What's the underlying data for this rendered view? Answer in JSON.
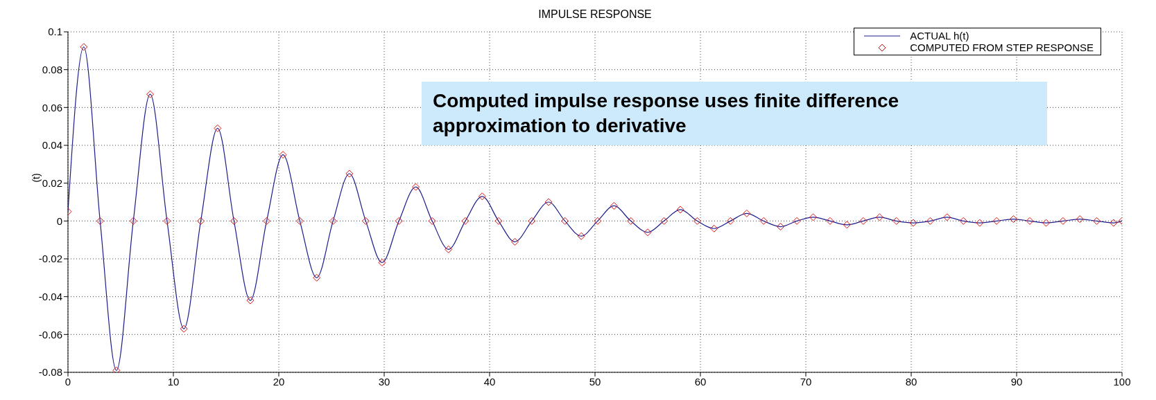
{
  "chart_data": {
    "type": "line",
    "title": "IMPULSE RESPONSE",
    "ylabel": "(t)",
    "annotations": [
      "Computed impulse response uses finite difference approximation to derivative"
    ],
    "x": [
      0,
      1.5,
      3.05,
      4.6,
      6.2,
      7.8,
      9.4,
      11.0,
      12.6,
      14.2,
      15.75,
      17.3,
      18.85,
      20.4,
      22.0,
      23.6,
      25.15,
      26.7,
      28.25,
      29.8,
      31.4,
      33.0,
      34.55,
      36.1,
      37.7,
      39.3,
      40.85,
      42.4,
      44.0,
      45.6,
      47.15,
      48.7,
      50.25,
      51.8,
      53.4,
      55.0,
      56.55,
      58.1,
      59.7,
      61.3,
      62.85,
      64.4,
      66.0,
      67.6,
      69.15,
      70.7,
      72.3,
      73.9,
      75.45,
      77.0,
      78.6,
      80.2,
      81.8,
      83.4,
      84.95,
      86.5,
      88.1,
      89.7,
      91.25,
      92.8,
      94.4,
      96.0,
      97.6,
      99.2,
      100
    ],
    "series": [
      {
        "name": "ACTUAL h(t)",
        "color": "#1c1c8c",
        "values": [
          0.005,
          0.092,
          0,
          -0.079,
          0,
          0.067,
          0,
          -0.057,
          0,
          0.049,
          0,
          -0.042,
          0,
          0.035,
          0,
          -0.03,
          0,
          0.025,
          0,
          -0.022,
          0,
          0.018,
          0,
          -0.015,
          0,
          0.013,
          0,
          -0.011,
          0,
          0.01,
          0,
          -0.008,
          0,
          0.008,
          0,
          -0.006,
          0,
          0.006,
          0,
          -0.004,
          0,
          0.004,
          0,
          -0.003,
          0,
          0.002,
          0,
          -0.002,
          0,
          0.002,
          0,
          -0.001,
          0,
          0.002,
          0,
          -0.001,
          0,
          0.001,
          0,
          -0.001,
          0,
          0.001,
          0,
          -0.001,
          0
        ]
      },
      {
        "name": "COMPUTED FROM STEP RESPONSE",
        "type": "scatter",
        "marker": "diamond",
        "color": "#e01010",
        "values": [
          0.005,
          0.092,
          0,
          -0.079,
          0,
          0.067,
          0,
          -0.057,
          0,
          0.049,
          0,
          -0.042,
          0,
          0.035,
          0,
          -0.03,
          0,
          0.025,
          0,
          -0.022,
          0,
          0.018,
          0,
          -0.015,
          0,
          0.013,
          0,
          -0.011,
          0,
          0.01,
          0,
          -0.008,
          0,
          0.008,
          0,
          -0.006,
          0,
          0.006,
          0,
          -0.004,
          0,
          0.004,
          0,
          -0.003,
          0,
          0.002,
          0,
          -0.002,
          0,
          0.002,
          0,
          -0.001,
          0,
          0.002,
          0,
          -0.001,
          0,
          0.001,
          0,
          -0.001,
          0,
          0.001,
          0,
          -0.001,
          0
        ]
      }
    ],
    "xlim": [
      0,
      100
    ],
    "xticks": [
      0,
      10,
      20,
      30,
      40,
      50,
      60,
      70,
      80,
      90,
      100
    ],
    "ylim": [
      -0.08,
      0.1
    ],
    "yticks": [
      -0.08,
      -0.06,
      -0.04,
      -0.02,
      0,
      0.02,
      0.04,
      0.06,
      0.08,
      0.1
    ],
    "grid": true,
    "legend": "top right",
    "line_style": "solid"
  }
}
